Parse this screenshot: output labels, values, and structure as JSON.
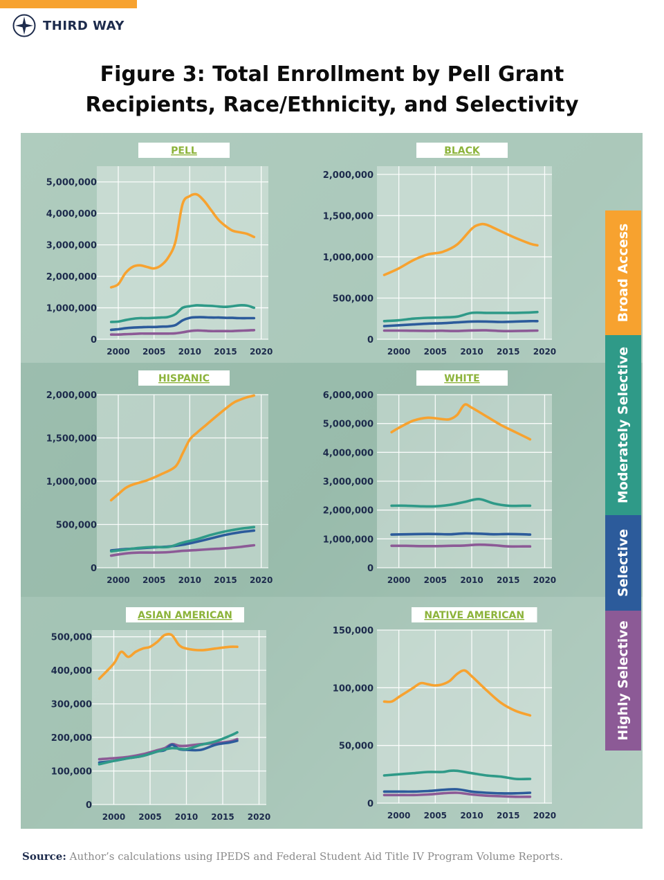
{
  "brand": {
    "name": "THIRD WAY"
  },
  "title": {
    "line1": "Figure 3: Total Enrollment by Pell Grant",
    "line2": "Recipients, Race/Ethnicity, and Selectivity"
  },
  "legend": [
    {
      "label": "Broad Access",
      "color": "#f7a22f"
    },
    {
      "label": "Moderately Selective",
      "color": "#2f9a88"
    },
    {
      "label": "Selective",
      "color": "#2c5b9b"
    },
    {
      "label": "Highly Selective",
      "color": "#8c5a96"
    }
  ],
  "source": {
    "label": "Source:",
    "text": "Author’s calculations using IPEDS and Federal Student Aid Title IV Program Volume Reports."
  },
  "chart_data": [
    {
      "type": "line",
      "title": "PELL",
      "xlim": [
        1997,
        2021
      ],
      "xticks": [
        2000,
        2005,
        2010,
        2015,
        2020
      ],
      "ylim": [
        0,
        5500000
      ],
      "yticks": [
        0,
        1000000,
        2000000,
        3000000,
        4000000,
        5000000
      ],
      "ytick_labels": [
        "0",
        "1,000,000",
        "2,000,000",
        "3,000,000",
        "4,000,000",
        "5,000,000"
      ],
      "series": [
        {
          "name": "Broad Access",
          "x": [
            1999,
            2000,
            2001,
            2002,
            2003,
            2004,
            2005,
            2006,
            2007,
            2008,
            2009,
            2010,
            2011,
            2012,
            2013,
            2014,
            2015,
            2016,
            2017,
            2018,
            2019
          ],
          "values": [
            1650000,
            1750000,
            2100000,
            2300000,
            2350000,
            2300000,
            2250000,
            2350000,
            2600000,
            3100000,
            4300000,
            4550000,
            4600000,
            4400000,
            4100000,
            3800000,
            3600000,
            3450000,
            3400000,
            3350000,
            3250000
          ]
        },
        {
          "name": "Moderately Selective",
          "x": [
            1999,
            2000,
            2001,
            2002,
            2003,
            2004,
            2005,
            2006,
            2007,
            2008,
            2009,
            2010,
            2011,
            2012,
            2013,
            2014,
            2015,
            2016,
            2017,
            2018,
            2019
          ],
          "values": [
            550000,
            560000,
            610000,
            650000,
            670000,
            670000,
            680000,
            690000,
            710000,
            800000,
            1000000,
            1050000,
            1080000,
            1070000,
            1060000,
            1040000,
            1030000,
            1050000,
            1080000,
            1070000,
            1000000
          ]
        },
        {
          "name": "Selective",
          "x": [
            1999,
            2000,
            2001,
            2002,
            2003,
            2004,
            2005,
            2006,
            2007,
            2008,
            2009,
            2010,
            2011,
            2012,
            2013,
            2014,
            2015,
            2016,
            2017,
            2018,
            2019
          ],
          "values": [
            300000,
            320000,
            350000,
            370000,
            380000,
            390000,
            390000,
            400000,
            410000,
            450000,
            600000,
            680000,
            700000,
            700000,
            690000,
            690000,
            680000,
            680000,
            670000,
            670000,
            670000
          ]
        },
        {
          "name": "Highly Selective",
          "x": [
            1999,
            2000,
            2001,
            2002,
            2003,
            2004,
            2005,
            2006,
            2007,
            2008,
            2009,
            2010,
            2011,
            2012,
            2013,
            2014,
            2015,
            2016,
            2017,
            2018,
            2019
          ],
          "values": [
            150000,
            150000,
            160000,
            170000,
            180000,
            180000,
            180000,
            180000,
            180000,
            190000,
            220000,
            260000,
            280000,
            270000,
            260000,
            260000,
            260000,
            260000,
            270000,
            280000,
            290000
          ]
        }
      ]
    },
    {
      "type": "line",
      "title": "BLACK",
      "xlim": [
        1997,
        2021
      ],
      "xticks": [
        2000,
        2005,
        2010,
        2015,
        2020
      ],
      "ylim": [
        0,
        2100000
      ],
      "yticks": [
        0,
        500000,
        1000000,
        1500000,
        2000000
      ],
      "ytick_labels": [
        "0",
        "500,000",
        "1,000,000",
        "1,500,000",
        "2,000,000"
      ],
      "series": [
        {
          "name": "Broad Access",
          "x": [
            1998,
            2000,
            2002,
            2004,
            2006,
            2008,
            2010,
            2011,
            2012,
            2014,
            2016,
            2018,
            2019
          ],
          "values": [
            780000,
            860000,
            960000,
            1030000,
            1060000,
            1150000,
            1340000,
            1390000,
            1390000,
            1310000,
            1230000,
            1160000,
            1140000
          ]
        },
        {
          "name": "Moderately Selective",
          "x": [
            1998,
            2000,
            2002,
            2004,
            2006,
            2008,
            2010,
            2012,
            2014,
            2016,
            2018,
            2019
          ],
          "values": [
            220000,
            230000,
            250000,
            260000,
            265000,
            275000,
            320000,
            320000,
            320000,
            320000,
            325000,
            330000
          ]
        },
        {
          "name": "Selective",
          "x": [
            1998,
            2000,
            2002,
            2004,
            2006,
            2008,
            2010,
            2012,
            2014,
            2016,
            2018,
            2019
          ],
          "values": [
            160000,
            170000,
            180000,
            190000,
            195000,
            205000,
            215000,
            215000,
            210000,
            215000,
            220000,
            220000
          ]
        },
        {
          "name": "Highly Selective",
          "x": [
            1998,
            2000,
            2002,
            2004,
            2006,
            2008,
            2010,
            2012,
            2014,
            2016,
            2018,
            2019
          ],
          "values": [
            105000,
            105000,
            103000,
            102000,
            103000,
            100000,
            107000,
            108000,
            100000,
            100000,
            103000,
            105000
          ]
        }
      ]
    },
    {
      "type": "line",
      "title": "HISPANIC",
      "xlim": [
        1997,
        2021
      ],
      "xticks": [
        2000,
        2005,
        2010,
        2015,
        2020
      ],
      "ylim": [
        0,
        2000000
      ],
      "yticks": [
        0,
        500000,
        1000000,
        1500000,
        2000000
      ],
      "ytick_labels": [
        "0",
        "500,000",
        "1,000,000",
        "1,500,000",
        "2,000,000"
      ],
      "series": [
        {
          "name": "Broad Access",
          "x": [
            1999,
            2000,
            2001,
            2002,
            2004,
            2006,
            2008,
            2009,
            2010,
            2011,
            2012,
            2014,
            2016,
            2017,
            2018,
            2019
          ],
          "values": [
            780000,
            850000,
            920000,
            960000,
            1010000,
            1080000,
            1170000,
            1320000,
            1480000,
            1560000,
            1630000,
            1770000,
            1900000,
            1940000,
            1970000,
            1990000
          ]
        },
        {
          "name": "Moderately Selective",
          "x": [
            1999,
            2001,
            2003,
            2005,
            2007,
            2009,
            2011,
            2013,
            2015,
            2017,
            2019
          ],
          "values": [
            190000,
            210000,
            230000,
            240000,
            240000,
            290000,
            330000,
            380000,
            420000,
            450000,
            470000
          ]
        },
        {
          "name": "Selective",
          "x": [
            1999,
            2001,
            2003,
            2005,
            2007,
            2009,
            2011,
            2013,
            2015,
            2017,
            2019
          ],
          "values": [
            200000,
            215000,
            225000,
            235000,
            245000,
            265000,
            300000,
            340000,
            380000,
            410000,
            430000
          ]
        },
        {
          "name": "Highly Selective",
          "x": [
            1999,
            2001,
            2003,
            2005,
            2007,
            2009,
            2011,
            2013,
            2015,
            2017,
            2019
          ],
          "values": [
            140000,
            165000,
            175000,
            175000,
            180000,
            195000,
            205000,
            215000,
            225000,
            240000,
            260000
          ]
        }
      ]
    },
    {
      "type": "line",
      "title": "WHITE",
      "xlim": [
        1997,
        2021
      ],
      "xticks": [
        2000,
        2005,
        2010,
        2015,
        2020
      ],
      "ylim": [
        0,
        6000000
      ],
      "yticks": [
        0,
        1000000,
        2000000,
        3000000,
        4000000,
        5000000,
        6000000
      ],
      "ytick_labels": [
        "0",
        "1,000,000",
        "2,000,000",
        "3,000,000",
        "4,000,000",
        "5,000,000",
        "6,000,000"
      ],
      "series": [
        {
          "name": "Broad Access",
          "x": [
            1999,
            2000,
            2002,
            2004,
            2006,
            2007,
            2008,
            2009,
            2010,
            2012,
            2014,
            2016,
            2018
          ],
          "values": [
            4700000,
            4850000,
            5100000,
            5200000,
            5150000,
            5150000,
            5300000,
            5650000,
            5550000,
            5250000,
            4950000,
            4700000,
            4450000
          ]
        },
        {
          "name": "Moderately Selective",
          "x": [
            1999,
            2001,
            2003,
            2005,
            2007,
            2009,
            2011,
            2013,
            2015,
            2017,
            2018
          ],
          "values": [
            2150000,
            2150000,
            2130000,
            2130000,
            2180000,
            2280000,
            2380000,
            2230000,
            2150000,
            2150000,
            2150000
          ]
        },
        {
          "name": "Selective",
          "x": [
            1999,
            2001,
            2003,
            2005,
            2007,
            2009,
            2011,
            2013,
            2015,
            2017,
            2018
          ],
          "values": [
            1150000,
            1160000,
            1170000,
            1170000,
            1160000,
            1190000,
            1180000,
            1160000,
            1170000,
            1160000,
            1150000
          ]
        },
        {
          "name": "Highly Selective",
          "x": [
            1999,
            2001,
            2003,
            2005,
            2007,
            2009,
            2011,
            2013,
            2015,
            2017,
            2018
          ],
          "values": [
            760000,
            760000,
            750000,
            750000,
            760000,
            770000,
            800000,
            780000,
            740000,
            740000,
            740000
          ]
        }
      ]
    },
    {
      "type": "line",
      "title": "ASIAN AMERICAN",
      "xlim": [
        1997,
        2021
      ],
      "xticks": [
        2000,
        2005,
        2010,
        2015,
        2020
      ],
      "ylim": [
        0,
        520000
      ],
      "yticks": [
        0,
        100000,
        200000,
        300000,
        400000,
        500000
      ],
      "ytick_labels": [
        "0",
        "100,000",
        "200,000",
        "300,000",
        "400,000",
        "500,000"
      ],
      "series": [
        {
          "name": "Broad Access",
          "x": [
            1998,
            2000,
            2001,
            2002,
            2003,
            2004,
            2005,
            2006,
            2007,
            2008,
            2009,
            2010,
            2012,
            2014,
            2016,
            2017
          ],
          "values": [
            375000,
            420000,
            455000,
            440000,
            455000,
            465000,
            470000,
            485000,
            505000,
            505000,
            475000,
            465000,
            460000,
            465000,
            470000,
            470000
          ]
        },
        {
          "name": "Moderately Selective",
          "x": [
            1998,
            2000,
            2002,
            2004,
            2006,
            2008,
            2010,
            2012,
            2014,
            2016,
            2017
          ],
          "values": [
            120000,
            130000,
            138000,
            145000,
            158000,
            168000,
            165000,
            178000,
            188000,
            205000,
            215000
          ]
        },
        {
          "name": "Selective",
          "x": [
            1998,
            2000,
            2002,
            2004,
            2006,
            2007,
            2008,
            2009,
            2010,
            2012,
            2014,
            2016,
            2017
          ],
          "values": [
            125000,
            130000,
            138000,
            145000,
            158000,
            162000,
            178000,
            165000,
            163000,
            163000,
            178000,
            185000,
            190000
          ]
        },
        {
          "name": "Highly Selective",
          "x": [
            1998,
            2000,
            2002,
            2004,
            2006,
            2007,
            2008,
            2009,
            2010,
            2012,
            2014,
            2016,
            2017
          ],
          "values": [
            135000,
            138000,
            142000,
            150000,
            162000,
            168000,
            180000,
            175000,
            175000,
            180000,
            183000,
            188000,
            195000
          ]
        }
      ]
    },
    {
      "type": "line",
      "title": "NATIVE AMERICAN",
      "xlim": [
        1997,
        2021
      ],
      "xticks": [
        2000,
        2005,
        2010,
        2015,
        2020
      ],
      "ylim": [
        0,
        150000
      ],
      "yticks": [
        0,
        50000,
        100000,
        150000
      ],
      "ytick_labels": [
        "0",
        "50,000",
        "100,000",
        "150,000"
      ],
      "series": [
        {
          "name": "Broad Access",
          "x": [
            1998,
            1999,
            2000,
            2001,
            2002,
            2003,
            2004,
            2005,
            2006,
            2007,
            2008,
            2009,
            2010,
            2012,
            2014,
            2016,
            2018
          ],
          "values": [
            88000,
            88000,
            92000,
            96000,
            100000,
            104000,
            103000,
            102000,
            103000,
            106000,
            112000,
            115000,
            110000,
            98000,
            87000,
            80000,
            76000
          ]
        },
        {
          "name": "Moderately Selective",
          "x": [
            1998,
            2000,
            2002,
            2004,
            2006,
            2007,
            2008,
            2010,
            2012,
            2014,
            2016,
            2018
          ],
          "values": [
            24000,
            25000,
            26000,
            27000,
            27000,
            28000,
            28000,
            26000,
            24000,
            23000,
            21000,
            21000
          ]
        },
        {
          "name": "Selective",
          "x": [
            1998,
            2000,
            2002,
            2004,
            2006,
            2008,
            2010,
            2012,
            2014,
            2016,
            2018
          ],
          "values": [
            10000,
            10000,
            10000,
            10500,
            11500,
            12000,
            10000,
            9000,
            8500,
            8500,
            9000
          ]
        },
        {
          "name": "Highly Selective",
          "x": [
            1998,
            2000,
            2002,
            2004,
            2006,
            2008,
            2010,
            2012,
            2014,
            2016,
            2018
          ],
          "values": [
            7000,
            7000,
            7000,
            7500,
            8500,
            9000,
            7500,
            6500,
            6000,
            5500,
            5500
          ]
        }
      ]
    }
  ]
}
